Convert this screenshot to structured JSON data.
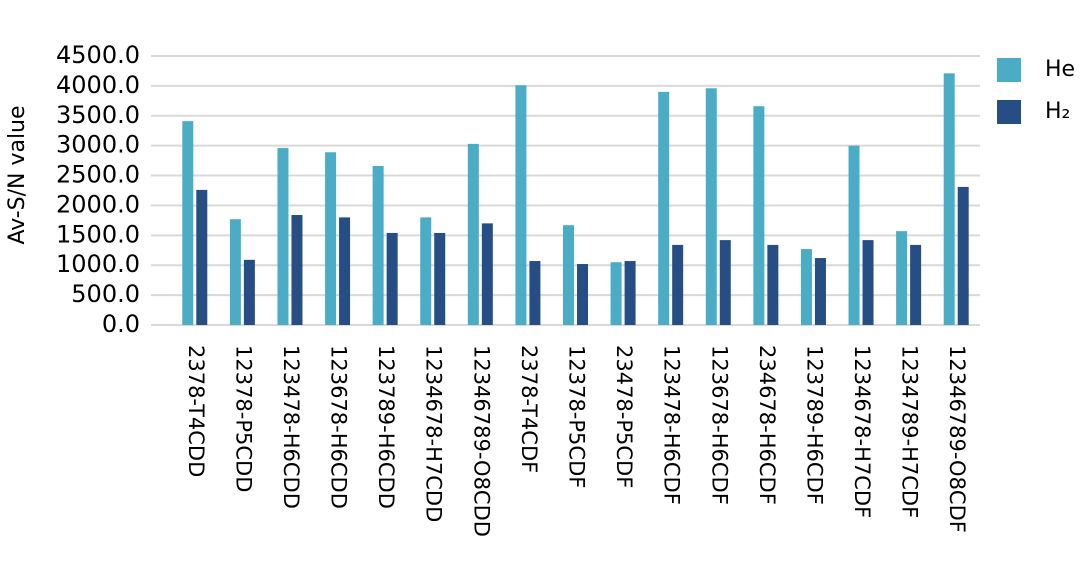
{
  "chart_data": {
    "type": "bar",
    "y_label": "Av-S/N value",
    "categories": [
      "2378-T4CDD",
      "12378-P5CDD",
      "123478-H6CDD",
      "123678-H6CDD",
      "123789-H6CDD",
      "1234678-H7CDD",
      "12346789-O8CDD",
      "2378-T4CDF",
      "12378-P5CDF",
      "23478-P5CDF",
      "123478-H6CDF",
      "123678-H6CDF",
      "234678-H6CDF",
      "123789-H6CDF",
      "1234678-H7CDF",
      "1234789-H7CDF",
      "12346789-O8CDF"
    ],
    "series": [
      {
        "name": "He",
        "color": "#4bacc6",
        "values": [
          3410,
          1770,
          2960,
          2890,
          2660,
          1800,
          3030,
          4010,
          1670,
          1050,
          3900,
          3960,
          3660,
          1270,
          3000,
          1570,
          4210
        ]
      },
      {
        "name": "H₂",
        "color": "#264d84",
        "values": [
          2260,
          1090,
          1840,
          1800,
          1540,
          1540,
          1700,
          1070,
          1020,
          1070,
          1340,
          1420,
          1340,
          1120,
          1420,
          1340,
          2310
        ]
      }
    ],
    "ylim": [
      0,
      4500
    ],
    "yticks": [
      {
        "value": 0,
        "label": "0.0"
      },
      {
        "value": 500,
        "label": "500.0"
      },
      {
        "value": 1000,
        "label": "1000.0"
      },
      {
        "value": 1500,
        "label": "1500.0"
      },
      {
        "value": 2000,
        "label": "2000.0"
      },
      {
        "value": 2500,
        "label": "2500.0"
      },
      {
        "value": 3000,
        "label": "3000.0"
      },
      {
        "value": 3500,
        "label": "3500.0"
      },
      {
        "value": 4000,
        "label": "4000.0"
      },
      {
        "value": 4500,
        "label": "4500.0"
      }
    ],
    "grid": true,
    "legend": "right"
  }
}
